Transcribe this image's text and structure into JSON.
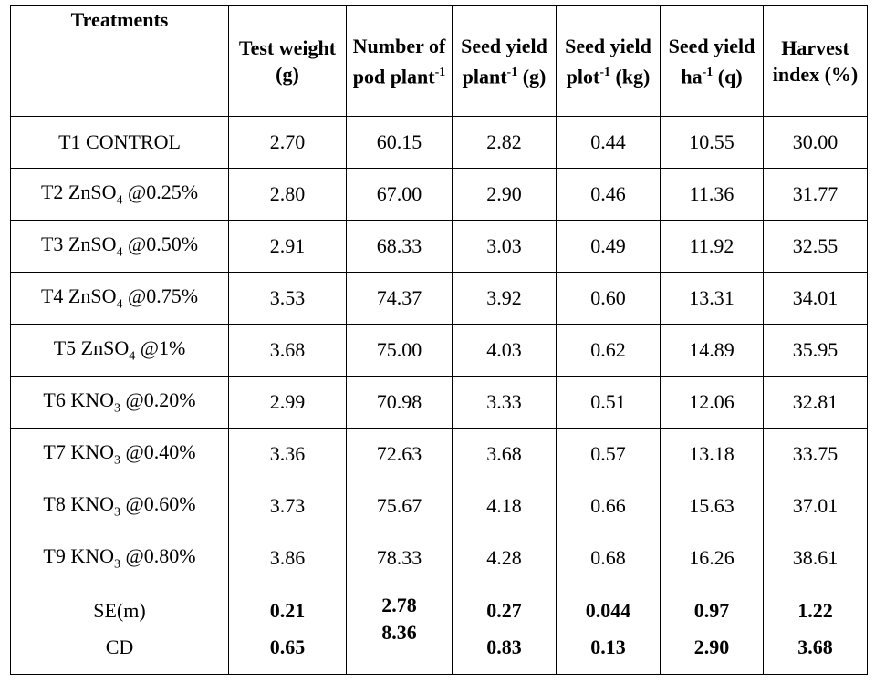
{
  "table": {
    "headers": [
      {
        "text": "Treatments"
      },
      {
        "text": "Test weight (g)"
      },
      {
        "text": "Number of pod plant",
        "sup": "-1"
      },
      {
        "text": "Seed yield plant",
        "sup": "-1",
        "rest": "(g)"
      },
      {
        "text": "Seed yield plot",
        "sup": "-1",
        "rest": "(kg)"
      },
      {
        "text": "Seed yield ha",
        "sup": "-1",
        "rest": "(q)"
      },
      {
        "text": "Harvest index (%)"
      }
    ],
    "rows": [
      [
        {
          "text": "T1 CONTROL"
        },
        "2.70",
        "60.15",
        "2.82",
        "0.44",
        "10.55",
        "30.00"
      ],
      [
        {
          "text": "T2 ZnSO",
          "sub": "4",
          "rest": "@0.25%"
        },
        "2.80",
        "67.00",
        "2.90",
        "0.46",
        "11.36",
        "31.77"
      ],
      [
        {
          "text": "T3 ZnSO",
          "sub": "4",
          "rest": "@0.50%"
        },
        "2.91",
        "68.33",
        "3.03",
        "0.49",
        "11.92",
        "32.55"
      ],
      [
        {
          "text": "T4 ZnSO",
          "sub": "4",
          "rest": "@0.75%"
        },
        "3.53",
        "74.37",
        "3.92",
        "0.60",
        "13.31",
        "34.01"
      ],
      [
        {
          "text": "T5 ZnSO",
          "sub": "4",
          "rest": "@1%"
        },
        "3.68",
        "75.00",
        "4.03",
        "0.62",
        "14.89",
        "35.95"
      ],
      [
        {
          "text": "T6 KNO",
          "sub": "3",
          "rest": "@0.20%"
        },
        "2.99",
        "70.98",
        "3.33",
        "0.51",
        "12.06",
        "32.81"
      ],
      [
        {
          "text": "T7 KNO",
          "sub": "3",
          "rest": "@0.40%"
        },
        "3.36",
        "72.63",
        "3.68",
        "0.57",
        "13.18",
        "33.75"
      ],
      [
        {
          "text": "T8 KNO",
          "sub": "3",
          "rest": "@0.60%"
        },
        "3.73",
        "75.67",
        "4.18",
        "0.66",
        "15.63",
        "37.01"
      ],
      [
        {
          "text": "T9 KNO",
          "sub": "3",
          "rest": "@0.80%"
        },
        "3.86",
        "78.33",
        "4.28",
        "0.68",
        "16.26",
        "38.61"
      ]
    ],
    "stats": {
      "labels": [
        "SE(m)",
        "CD"
      ],
      "values": [
        [
          "0.21",
          "0.65"
        ],
        [
          "2.78",
          "8.36"
        ],
        [
          "0.27",
          "0.83"
        ],
        [
          "0.044",
          "0.13"
        ],
        [
          "0.97",
          "2.90"
        ],
        [
          "1.22",
          "3.68"
        ]
      ]
    }
  }
}
